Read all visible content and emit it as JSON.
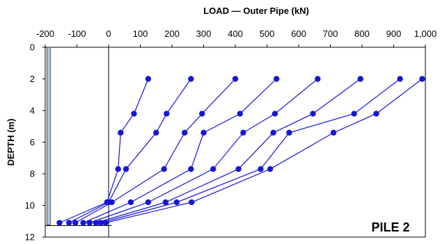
{
  "chart_data": {
    "type": "line",
    "title": "LOAD — Outer Pipe  (kN)",
    "xlabel": "LOAD — Outer Pipe  (kN)",
    "ylabel": "DEPTH (m)",
    "xlim": [
      -200,
      1000
    ],
    "ylim": [
      0,
      12
    ],
    "y_inverted": true,
    "x_axis_position": "top",
    "x_ticks": [
      "-200",
      "-100",
      "0",
      "100",
      "200",
      "300",
      "400",
      "500",
      "600",
      "700",
      "800",
      "900",
      "1,000"
    ],
    "y_ticks": [
      "0",
      "2",
      "4",
      "6",
      "8",
      "10",
      "12"
    ],
    "grid": false,
    "annotation": "PILE  2",
    "series_color": "#1515d6",
    "pile_bar_color": "#a9c8e0",
    "depths": [
      2.0,
      4.2,
      5.4,
      7.7,
      9.8,
      11.1
    ],
    "series": [
      {
        "load": [
          125,
          80,
          38,
          30,
          -5,
          -155
        ]
      },
      {
        "load": [
          260,
          183,
          150,
          55,
          0,
          -125
        ]
      },
      {
        "load": [
          400,
          295,
          240,
          175,
          10,
          -105
        ]
      },
      {
        "load": [
          530,
          415,
          300,
          260,
          70,
          -80
        ]
      },
      {
        "load": [
          660,
          525,
          425,
          330,
          125,
          -60
        ]
      },
      {
        "load": [
          795,
          645,
          520,
          410,
          180,
          -40
        ]
      },
      {
        "load": [
          920,
          775,
          570,
          480,
          215,
          -25
        ]
      },
      {
        "load": [
          990,
          845,
          710,
          510,
          262,
          -10
        ]
      }
    ]
  }
}
